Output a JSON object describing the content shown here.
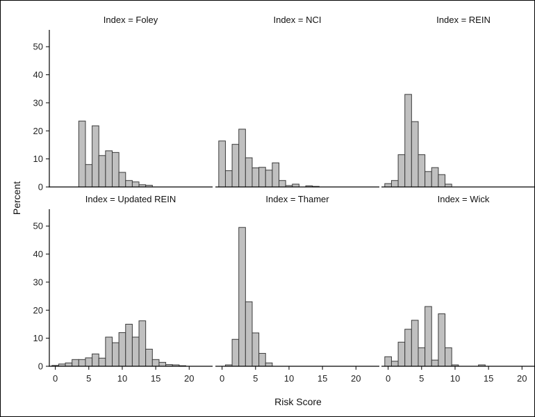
{
  "chart_data": {
    "type": "bar",
    "layout": "panel grid 2 rows x 3 columns, shared axes",
    "xlabel": "Risk Score",
    "ylabel": "Percent",
    "xlim": [
      -1,
      23.5
    ],
    "ylim": [
      0,
      56
    ],
    "xticks": [
      0,
      5,
      10,
      15,
      20
    ],
    "yticks": [
      0,
      10,
      20,
      30,
      40,
      50
    ],
    "bin_width": 1,
    "grid": false,
    "bar_color": "#c0c0c0",
    "bar_edge_color": "#3a3a3a",
    "panels": [
      {
        "title": "Index = Foley",
        "bins": [
          0,
          1,
          2,
          3,
          4,
          5,
          6,
          7,
          8,
          9,
          10,
          11,
          12,
          13,
          14,
          15,
          16,
          17,
          18,
          19,
          20,
          21,
          22
        ],
        "values": [
          0,
          0,
          0,
          0,
          23.5,
          8,
          21.8,
          11.2,
          12.9,
          12.3,
          5.2,
          2.3,
          1.8,
          0.8,
          0.6,
          0,
          0,
          0,
          0,
          0,
          0,
          0,
          0
        ]
      },
      {
        "title": "Index = NCI",
        "bins": [
          0,
          1,
          2,
          3,
          4,
          5,
          6,
          7,
          8,
          9,
          10,
          11,
          12,
          13,
          14,
          15,
          16,
          17,
          18,
          19,
          20,
          21,
          22
        ],
        "values": [
          16.4,
          5.8,
          15.2,
          20.6,
          10.4,
          6.8,
          7,
          6,
          8.6,
          2.3,
          0.5,
          1,
          0,
          0.4,
          0.2,
          0,
          0,
          0,
          0,
          0,
          0,
          0,
          0
        ]
      },
      {
        "title": "Index = REIN",
        "bins": [
          0,
          1,
          2,
          3,
          4,
          5,
          6,
          7,
          8,
          9,
          10,
          11,
          12,
          13,
          14,
          15,
          16,
          17,
          18,
          19,
          20,
          21,
          22
        ],
        "values": [
          1.2,
          2.3,
          11.5,
          33,
          23.3,
          11.5,
          5.5,
          6.9,
          4.4,
          1,
          0,
          0,
          0,
          0,
          0,
          0,
          0,
          0,
          0,
          0,
          0,
          0,
          0
        ]
      },
      {
        "title": "Index = Updated REIN",
        "bins": [
          0,
          1,
          2,
          3,
          4,
          5,
          6,
          7,
          8,
          9,
          10,
          11,
          12,
          13,
          14,
          15,
          16,
          17,
          18,
          19,
          20,
          21,
          22
        ],
        "values": [
          0.3,
          0.8,
          1.2,
          2.4,
          2.4,
          3,
          4.4,
          2.9,
          10.4,
          8.4,
          12,
          15,
          10.4,
          16.2,
          6.1,
          2.4,
          1.4,
          0.6,
          0.5,
          0.2,
          0,
          0,
          0
        ]
      },
      {
        "title": "Index = Thamer",
        "bins": [
          0,
          1,
          2,
          3,
          4,
          5,
          6,
          7,
          8,
          9,
          10,
          11,
          12,
          13,
          14,
          15,
          16,
          17,
          18,
          19,
          20,
          21,
          22
        ],
        "values": [
          0,
          0.5,
          9.6,
          49.5,
          23,
          11.9,
          4.6,
          1.2,
          0,
          0,
          0,
          0,
          0,
          0,
          0,
          0,
          0,
          0,
          0,
          0,
          0,
          0,
          0
        ]
      },
      {
        "title": "Index = Wick",
        "bins": [
          0,
          1,
          2,
          3,
          4,
          5,
          6,
          7,
          8,
          9,
          10,
          11,
          12,
          13,
          14,
          15,
          16,
          17,
          18,
          19,
          20,
          21,
          22
        ],
        "values": [
          3.4,
          1.8,
          8.6,
          13.2,
          16.4,
          6.6,
          21.3,
          2.2,
          18.7,
          6.6,
          0.5,
          0,
          0,
          0,
          0.5,
          0,
          0,
          0,
          0,
          0,
          0,
          0,
          0
        ]
      }
    ]
  }
}
